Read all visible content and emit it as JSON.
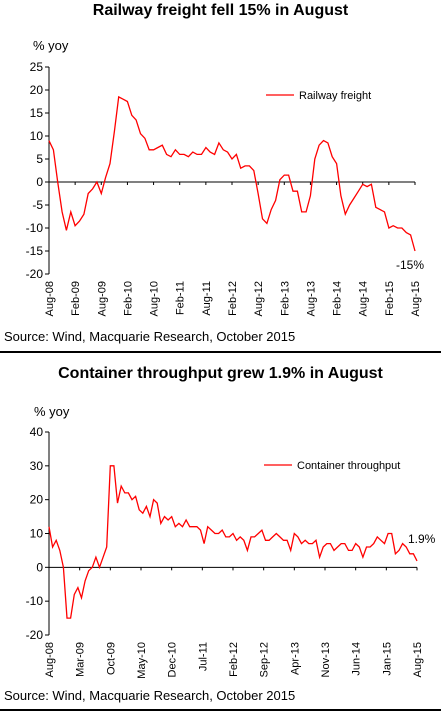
{
  "chart_data": [
    {
      "type": "line",
      "title": "Railway freight fell 15% in August",
      "ylabel": "% yoy",
      "ylim": [
        -20,
        25
      ],
      "yticks": [
        25,
        20,
        15,
        10,
        5,
        0,
        -5,
        -10,
        -15,
        -20
      ],
      "xticklabels": [
        "Aug-08",
        "Feb-09",
        "Aug-09",
        "Feb-10",
        "Aug-10",
        "Feb-11",
        "Aug-11",
        "Feb-12",
        "Aug-12",
        "Feb-13",
        "Aug-13",
        "Feb-14",
        "Aug-14",
        "Feb-15",
        "Aug-15"
      ],
      "legend": "top-right",
      "series": [
        {
          "name": "Railway freight",
          "color": "#ff0000",
          "values": [
            9,
            7,
            0,
            -6.5,
            -10.5,
            -6.5,
            -9.5,
            -8.5,
            -7,
            -2.5,
            -1.5,
            0,
            -2.5,
            1,
            4,
            11,
            18.5,
            18,
            17.5,
            14.5,
            13.5,
            10.5,
            9.5,
            7,
            7,
            7.5,
            8,
            6,
            5.5,
            7,
            6,
            6,
            5.5,
            6.5,
            6,
            6,
            7.5,
            6.5,
            6,
            8.5,
            7,
            6.5,
            5,
            6,
            3,
            3.5,
            3.5,
            2.5,
            -2.5,
            -8,
            -9,
            -6,
            -4,
            0.5,
            1.5,
            1.5,
            -2,
            -2,
            -6.5,
            -6.5,
            -3,
            5,
            8,
            9,
            8.5,
            5.5,
            4,
            -3,
            -7,
            -5,
            -3.5,
            -2,
            -0.5,
            -1,
            -0.5,
            -5.5,
            -6,
            -6.5,
            -10,
            -9.5,
            -10,
            -10,
            -11,
            -11.5,
            -15
          ]
        }
      ],
      "annotation": "-15%",
      "source": "Source: Wind, Macquarie Research, October 2015"
    },
    {
      "type": "line",
      "title": "Container throughput grew 1.9% in August",
      "ylabel": "% yoy",
      "ylim": [
        -20,
        40
      ],
      "yticks": [
        40,
        30,
        20,
        10,
        0,
        -10,
        -20
      ],
      "xticklabels": [
        "Aug-08",
        "Mar-09",
        "Oct-09",
        "May-10",
        "Dec-10",
        "Jul-11",
        "Feb-12",
        "Sep-12",
        "Apr-13",
        "Nov-13",
        "Jun-14",
        "Jan-15",
        "Aug-15"
      ],
      "legend": "top-right",
      "series": [
        {
          "name": "Container throughput",
          "color": "#ff0000",
          "values": [
            12,
            6,
            8,
            5,
            0,
            -15,
            -15,
            -8,
            -6,
            -9,
            -4,
            -1,
            0,
            3,
            0,
            3,
            6,
            30,
            30,
            19,
            24,
            22,
            22,
            20,
            21,
            17,
            16,
            18,
            15,
            20,
            19,
            13,
            15,
            14,
            15,
            12,
            13,
            12,
            14,
            12,
            12,
            12,
            11,
            7,
            12,
            11,
            10,
            10,
            11,
            9,
            9,
            10,
            8,
            9,
            8,
            5,
            9,
            9,
            10,
            11,
            8,
            8,
            9,
            10,
            9,
            8,
            8,
            5,
            10,
            9,
            7,
            8,
            7,
            7,
            8,
            3,
            6,
            7,
            7,
            5,
            6,
            7,
            7,
            5,
            5,
            7,
            6,
            3,
            6,
            6,
            7,
            9,
            8,
            7,
            10,
            10,
            4,
            5,
            7,
            6,
            4,
            4,
            1.9
          ],
          "label_last": "1.9%"
        }
      ],
      "source": "Source: Wind, Macquarie Research, October 2015"
    }
  ]
}
